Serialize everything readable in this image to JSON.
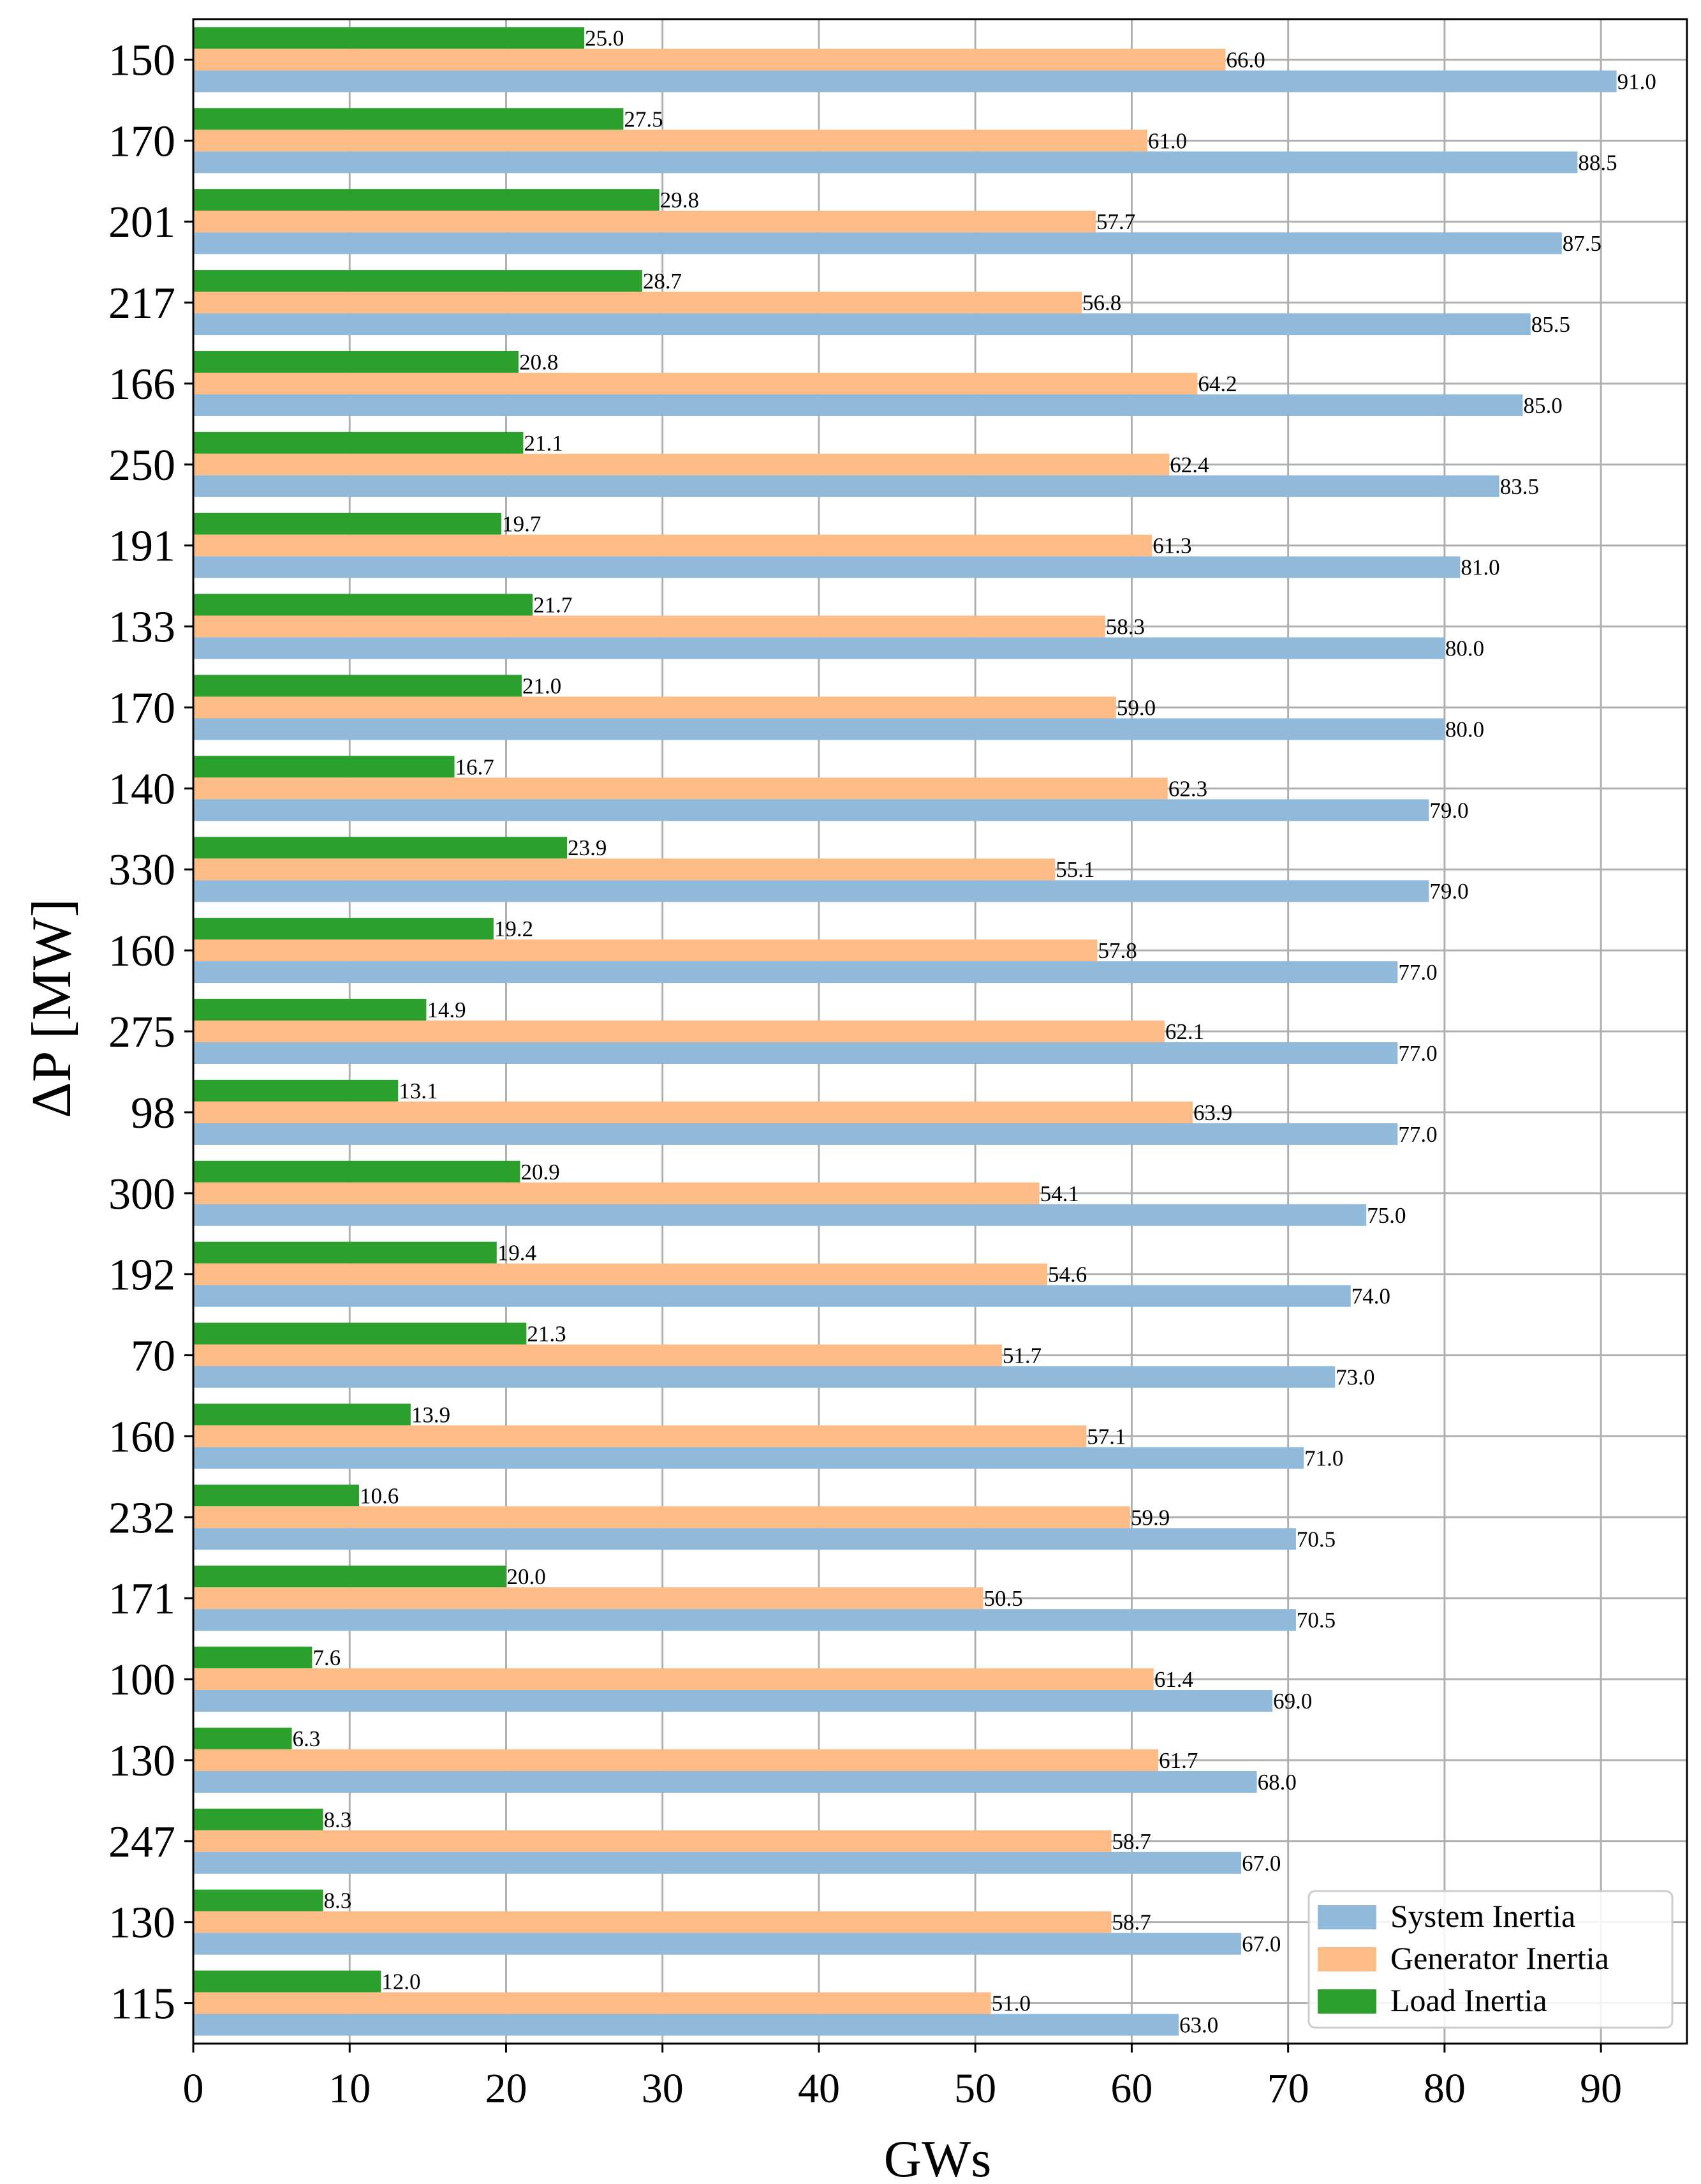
{
  "chart_data": {
    "type": "bar",
    "orientation": "horizontal",
    "xlabel": "GWs",
    "ylabel": "ΔP [MW]",
    "xlim": [
      0,
      95.5
    ],
    "xticks": [
      0,
      10,
      20,
      30,
      40,
      50,
      60,
      70,
      80,
      90
    ],
    "grid": true,
    "legend_position": "bottom-right",
    "categories": [
      "150",
      "170",
      "201",
      "217",
      "166",
      "250",
      "191",
      "133",
      "170",
      "140",
      "330",
      "160",
      "275",
      "98",
      "300",
      "192",
      "70",
      "160",
      "232",
      "171",
      "100",
      "130",
      "247",
      "130",
      "115"
    ],
    "series": [
      {
        "name": "System Inertia",
        "color": "#91b9d9",
        "values": [
          91.0,
          88.5,
          87.5,
          85.5,
          85.0,
          83.5,
          81.0,
          80.0,
          80.0,
          79.0,
          79.0,
          77.0,
          77.0,
          77.0,
          75.0,
          74.0,
          73.0,
          71.0,
          70.5,
          70.5,
          69.0,
          68.0,
          67.0,
          67.0,
          63.0
        ]
      },
      {
        "name": "Generator Inertia",
        "color": "#fdbb86",
        "values": [
          66.0,
          61.0,
          57.7,
          56.8,
          64.2,
          62.4,
          61.3,
          58.3,
          59.0,
          62.3,
          55.1,
          57.8,
          62.1,
          63.9,
          54.1,
          54.6,
          51.7,
          57.1,
          59.9,
          50.5,
          61.4,
          61.7,
          58.7,
          58.7,
          51.0
        ]
      },
      {
        "name": "Load Inertia",
        "color": "#2ca02c",
        "values": [
          25.0,
          27.5,
          29.8,
          28.7,
          20.8,
          21.1,
          19.7,
          21.7,
          21.0,
          16.7,
          23.9,
          19.2,
          14.9,
          13.1,
          20.9,
          19.4,
          21.3,
          13.9,
          10.6,
          20.0,
          7.6,
          6.3,
          8.3,
          8.3,
          12.0
        ]
      }
    ]
  }
}
